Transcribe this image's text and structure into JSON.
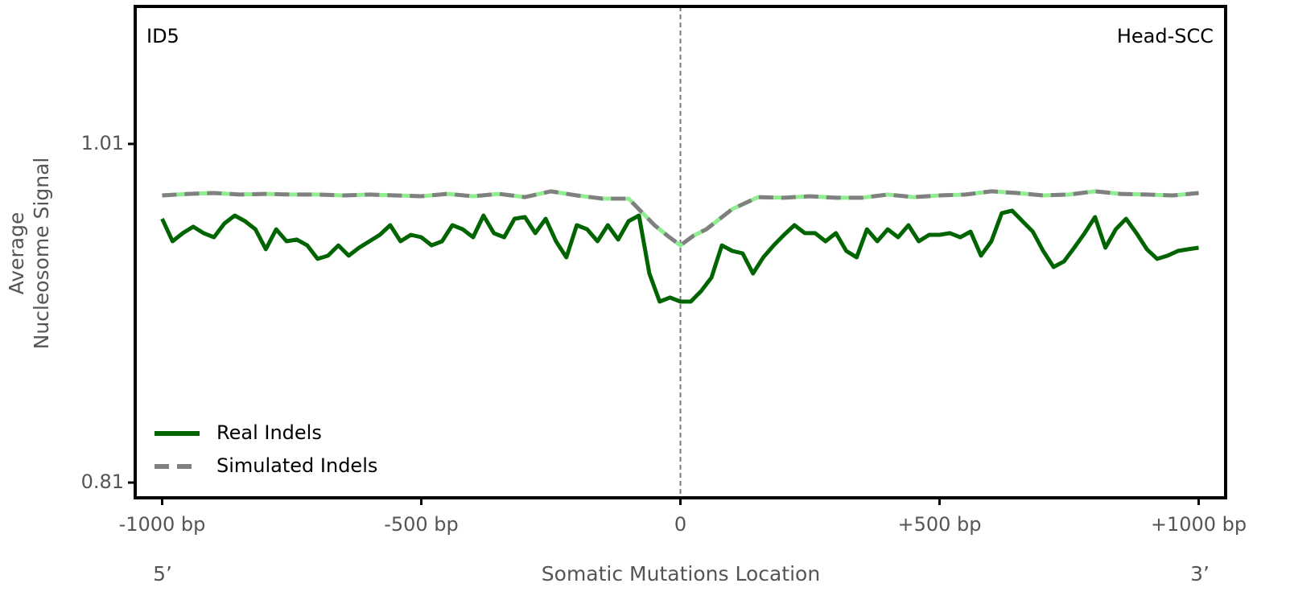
{
  "chart_data": {
    "type": "line",
    "annotations": {
      "top_left": "ID5",
      "top_right": "Head-SCC",
      "left_end": "5’",
      "right_end": "3’"
    },
    "xlabel": "Somatic Mutations Location",
    "ylabel": [
      "Average",
      "Nucleosome Signal"
    ],
    "xlim": [
      -1052,
      1052
    ],
    "ylim": [
      0.801,
      1.0912
    ],
    "xticks": [
      {
        "value": -1000,
        "label": "-1000 bp"
      },
      {
        "value": -500,
        "label": "-500 bp"
      },
      0,
      {
        "value": 500,
        "label": "+500 bp"
      },
      {
        "value": 1000,
        "label": "+1000 bp"
      }
    ],
    "yticks": [
      0.81,
      1.01
    ],
    "vline": 0,
    "legend": "lower left",
    "series": [
      {
        "name": "Real Indels",
        "color": "#006400",
        "style": "solid",
        "x": [
          -1000,
          -980,
          -960,
          -940,
          -920,
          -900,
          -880,
          -860,
          -840,
          -820,
          -800,
          -780,
          -760,
          -740,
          -720,
          -700,
          -680,
          -660,
          -640,
          -620,
          -600,
          -580,
          -560,
          -540,
          -520,
          -500,
          -480,
          -460,
          -440,
          -420,
          -400,
          -380,
          -360,
          -340,
          -320,
          -300,
          -280,
          -260,
          -240,
          -220,
          -200,
          -180,
          -160,
          -140,
          -120,
          -100,
          -80,
          -60,
          -40,
          -20,
          0,
          20,
          40,
          60,
          80,
          100,
          120,
          140,
          160,
          180,
          200,
          220,
          240,
          260,
          280,
          300,
          320,
          340,
          360,
          380,
          400,
          420,
          440,
          460,
          480,
          500,
          520,
          540,
          560,
          580,
          600,
          620,
          640,
          660,
          680,
          700,
          720,
          740,
          760,
          780,
          800,
          820,
          840,
          860,
          880,
          900,
          920,
          940,
          960,
          980,
          1000
        ],
        "values": [
          0.9658,
          0.9525,
          0.9573,
          0.9611,
          0.9573,
          0.9549,
          0.963,
          0.9677,
          0.9644,
          0.9596,
          0.9478,
          0.9596,
          0.9525,
          0.9535,
          0.9501,
          0.9421,
          0.944,
          0.9501,
          0.944,
          0.9487,
          0.9525,
          0.9563,
          0.962,
          0.9525,
          0.9563,
          0.9549,
          0.9501,
          0.9525,
          0.962,
          0.9596,
          0.9549,
          0.9677,
          0.9573,
          0.9549,
          0.9658,
          0.9668,
          0.9573,
          0.9658,
          0.9525,
          0.943,
          0.962,
          0.9596,
          0.9525,
          0.962,
          0.9535,
          0.9644,
          0.9677,
          0.9335,
          0.9169,
          0.9193,
          0.9169,
          0.9169,
          0.9231,
          0.9311,
          0.9501,
          0.9468,
          0.9454,
          0.9335,
          0.943,
          0.9501,
          0.9563,
          0.962,
          0.9573,
          0.9573,
          0.9525,
          0.9573,
          0.9468,
          0.943,
          0.9596,
          0.9525,
          0.9596,
          0.9549,
          0.962,
          0.9525,
          0.9563,
          0.9563,
          0.9573,
          0.9549,
          0.9582,
          0.944,
          0.9525,
          0.9691,
          0.9706,
          0.9644,
          0.9582,
          0.9468,
          0.9373,
          0.9406,
          0.9487,
          0.9573,
          0.9668,
          0.9487,
          0.9596,
          0.9658,
          0.9573,
          0.9478,
          0.9421,
          0.944,
          0.9468,
          0.9478,
          0.9487
        ]
      },
      {
        "name": "Simulated Indels",
        "color": "#808080",
        "underlay_color": "#90ee90",
        "style": "dashed",
        "x": [
          -1000,
          -950,
          -900,
          -850,
          -800,
          -750,
          -700,
          -650,
          -600,
          -550,
          -500,
          -450,
          -400,
          -350,
          -300,
          -250,
          -200,
          -150,
          -100,
          -50,
          -25,
          0,
          25,
          50,
          100,
          150,
          200,
          250,
          300,
          350,
          400,
          450,
          500,
          550,
          600,
          650,
          700,
          750,
          800,
          850,
          900,
          950,
          1000
        ],
        "values": [
          0.9796,
          0.9805,
          0.981,
          0.9801,
          0.9805,
          0.9801,
          0.9801,
          0.9796,
          0.9801,
          0.9796,
          0.9791,
          0.9805,
          0.9791,
          0.9805,
          0.9786,
          0.982,
          0.9796,
          0.9777,
          0.9777,
          0.962,
          0.9558,
          0.9501,
          0.9558,
          0.9596,
          0.9715,
          0.9786,
          0.9782,
          0.9791,
          0.9782,
          0.9782,
          0.9801,
          0.9786,
          0.9796,
          0.9801,
          0.982,
          0.981,
          0.9796,
          0.9801,
          0.982,
          0.9805,
          0.9801,
          0.9796,
          0.981
        ]
      }
    ]
  }
}
